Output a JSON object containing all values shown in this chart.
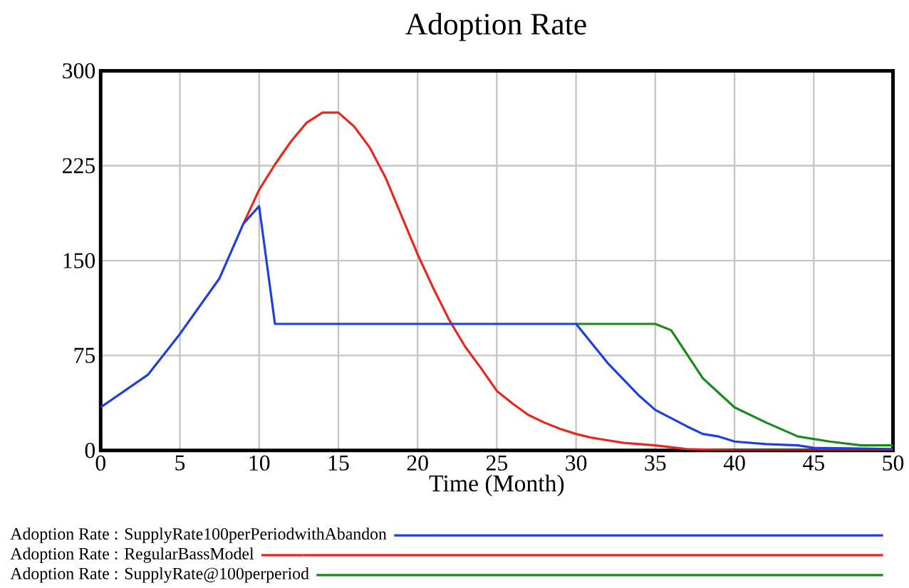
{
  "chart_data": {
    "type": "line",
    "title": "Adoption Rate",
    "xlabel": "Time (Month)",
    "xlim": [
      0,
      50
    ],
    "xticks": [
      0,
      5,
      10,
      15,
      20,
      25,
      30,
      35,
      40,
      45,
      50
    ],
    "ylim": [
      0,
      300
    ],
    "yticks": [
      0,
      75,
      150,
      225,
      300
    ],
    "grid": true,
    "legend": "bottom",
    "line_style": "solid",
    "marker": "none",
    "series": [
      {
        "name": "Adoption Rate : SupplyRate100perPeriodwithAbandon",
        "color": "#1f3fe0",
        "x": [
          0,
          3,
          5,
          7.5,
          9,
          10,
          11,
          30,
          32,
          34,
          35,
          37,
          38,
          39,
          40,
          42,
          44,
          45,
          50
        ],
        "values": [
          34,
          60,
          92,
          136,
          179,
          193,
          100,
          100,
          69,
          43,
          32,
          19,
          13,
          11,
          7,
          5,
          4,
          2,
          1
        ]
      },
      {
        "name": "Adoption Rate : RegularBassModel",
        "color": "#e8281e",
        "x": [
          9,
          10,
          11,
          12,
          13,
          14,
          15,
          16,
          17,
          18,
          20,
          21,
          22,
          23,
          24,
          25,
          26,
          27,
          28,
          29,
          30,
          31,
          32,
          33,
          34,
          35,
          37,
          40,
          50
        ],
        "values": [
          179,
          206,
          226,
          244,
          259,
          267,
          267,
          256,
          239,
          215,
          155,
          128,
          103,
          82,
          65,
          47,
          37,
          28,
          22,
          17,
          13,
          10,
          8,
          6,
          5,
          4,
          1,
          0,
          0
        ]
      },
      {
        "name": "Adoption Rate : SupplyRate@100perperiod",
        "color": "#1a8a1a",
        "x": [
          30,
          35,
          36,
          38,
          40,
          42,
          44,
          46,
          48,
          50
        ],
        "values": [
          100,
          100,
          95,
          57,
          34,
          22,
          11,
          7,
          4,
          4
        ]
      }
    ]
  }
}
